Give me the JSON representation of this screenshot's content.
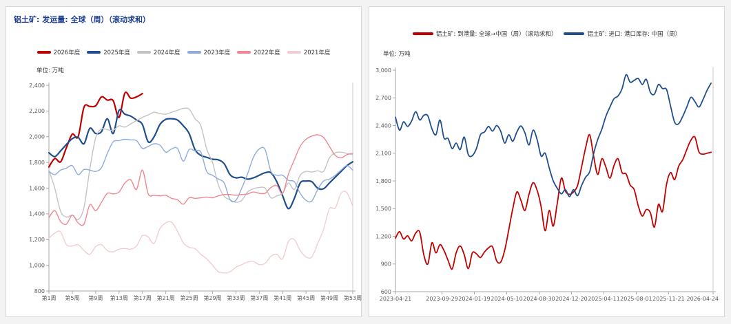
{
  "page": {
    "description_left_panel": "bauxite weekly global shipments",
    "description_right_panel": "bauxite arrivals and port inventory China"
  },
  "chart_data": [
    {
      "type": "line",
      "title": "铝土矿: 发运量: 全球（周）（滚动求和）",
      "unit": "单位: 万吨",
      "ylim": [
        800,
        2400
      ],
      "y_step": 200,
      "axis_weeks": [
        1,
        53
      ],
      "x_tick_weeks": [
        1,
        5,
        9,
        13,
        17,
        21,
        25,
        29,
        33,
        37,
        41,
        45,
        49,
        53
      ],
      "x_tick_labels": [
        "第1周",
        "第5周",
        "第9周",
        "第13周",
        "第17周",
        "第21周",
        "第25周",
        "第29周",
        "第33周",
        "第37周",
        "第41周",
        "第45周",
        "第49周",
        "第53周"
      ],
      "legend_position": "top",
      "grid": false,
      "series": [
        {
          "name": "2026年度",
          "color": "#c00000",
          "width": 2.2,
          "week_start": 1,
          "week_step": 1,
          "values": [
            1765,
            1830,
            1805,
            1915,
            2020,
            2000,
            2230,
            2235,
            2240,
            2310,
            2285,
            2280,
            2150,
            2340,
            2300,
            2310,
            2335
          ]
        },
        {
          "name": "2025年度",
          "color": "#1f4e8c",
          "width": 2.2,
          "week_start": 1,
          "week_step": 1,
          "values": [
            1875,
            1845,
            1890,
            1940,
            1985,
            1995,
            1945,
            2065,
            2025,
            2040,
            2140,
            2025,
            2205,
            2175,
            2160,
            2130,
            2095,
            1960,
            2000,
            2095,
            2135,
            2140,
            2130,
            2085,
            2025,
            1900,
            1855,
            1840,
            1825,
            1820,
            1790,
            1705,
            1680,
            1685,
            1670,
            1680,
            1700,
            1720,
            1720,
            1650,
            1540,
            1440,
            1520,
            1640,
            1655,
            1650,
            1600,
            1595,
            1640,
            1685,
            1730,
            1775,
            1805
          ]
        },
        {
          "name": "2024年度",
          "color": "#c3c3c3",
          "width": 1.4,
          "week_start": 1,
          "week_step": 1,
          "values": [
            1740,
            1600,
            1420,
            1375,
            1390,
            1355,
            1450,
            1750,
            1990,
            2060,
            2055,
            2050,
            2085,
            2075,
            2100,
            2125,
            2150,
            2170,
            2190,
            2180,
            2175,
            2190,
            2205,
            2220,
            2215,
            2140,
            2085,
            1905,
            1800,
            1625,
            1535,
            1510,
            1490,
            1505,
            1570,
            1595,
            1605,
            1600,
            1525,
            1540,
            1560,
            1640,
            1590,
            1700,
            1730,
            1725,
            1735,
            1730,
            1835,
            1875,
            1880,
            1870,
            1860
          ]
        },
        {
          "name": "2023年度",
          "color": "#8faadc",
          "width": 1.4,
          "week_start": 1,
          "week_step": 1,
          "values": [
            1730,
            1705,
            1740,
            1755,
            1775,
            1705,
            1745,
            1740,
            1730,
            1760,
            1870,
            1960,
            1970,
            1980,
            1975,
            1970,
            1910,
            1925,
            1945,
            1935,
            1880,
            1905,
            1910,
            1810,
            1900,
            1890,
            1880,
            1730,
            1700,
            1670,
            1640,
            1510,
            1505,
            1600,
            1710,
            1840,
            1905,
            1900,
            1730,
            1700,
            1700,
            1660,
            1650,
            1560,
            1505,
            1500,
            1590,
            1655,
            1670,
            1700,
            1740,
            1775,
            1740
          ]
        },
        {
          "name": "2022年度",
          "color": "#f0868f",
          "width": 1.4,
          "week_start": 1,
          "week_step": 1,
          "values": [
            1370,
            1425,
            1340,
            1320,
            1390,
            1330,
            1320,
            1470,
            1425,
            1490,
            1560,
            1555,
            1570,
            1640,
            1665,
            1590,
            1740,
            1555,
            1545,
            1540,
            1545,
            1520,
            1510,
            1475,
            1525,
            1520,
            1525,
            1530,
            1525,
            1540,
            1550,
            1550,
            1545,
            1550,
            1555,
            1570,
            1560,
            1560,
            1605,
            1620,
            1560,
            1710,
            1820,
            1925,
            1980,
            2005,
            2015,
            1995,
            1925,
            1855,
            1835,
            1860,
            1870
          ]
        },
        {
          "name": "2021年度",
          "color": "#f2cdd0",
          "width": 1.4,
          "week_start": 1,
          "week_step": 1,
          "values": [
            1210,
            1250,
            1260,
            1160,
            1150,
            1160,
            1115,
            1085,
            1145,
            1160,
            1115,
            1105,
            1125,
            1130,
            1125,
            1150,
            1230,
            1220,
            1170,
            1285,
            1330,
            1335,
            1265,
            1175,
            1140,
            1130,
            1085,
            1050,
            1000,
            950,
            940,
            950,
            985,
            1005,
            1025,
            1030,
            1005,
            1015,
            1070,
            1085,
            1050,
            1185,
            1200,
            1115,
            1065,
            1065,
            1170,
            1280,
            1440,
            1445,
            1560,
            1565,
            1460
          ]
        }
      ]
    },
    {
      "type": "line",
      "title": "",
      "unit": "单位: 万吨",
      "ylim": [
        600,
        3000
      ],
      "y_step": 300,
      "axis_weeks": [
        0,
        157
      ],
      "x_tick_weeks": [
        0,
        23,
        39,
        55,
        71,
        87,
        103,
        119,
        135,
        157
      ],
      "x_tick_labels": [
        "2023-04-21",
        "2023-09-29",
        "2024-01-19",
        "2024-05-10",
        "2024-08-30",
        "2024-12-20",
        "2025-04-11",
        "2025-08-01",
        "2025-11-21",
        "2026-04-24"
      ],
      "legend_position": "top",
      "grid": false,
      "series": [
        {
          "name": "铝土矿: 到港量: 全球→中国（周）（滚动求和）",
          "color": "#c00000",
          "width": 1.8,
          "week_start": 0,
          "week_step": 2,
          "values": [
            1180,
            1250,
            1170,
            1205,
            1150,
            1235,
            1245,
            1000,
            900,
            1130,
            1020,
            1110,
            1045,
            940,
            845,
            1020,
            1095,
            1000,
            850,
            1020,
            1010,
            970,
            1030,
            1075,
            1085,
            935,
            920,
            1050,
            1270,
            1500,
            1680,
            1590,
            1480,
            1655,
            1780,
            1700,
            1520,
            1260,
            1480,
            1310,
            1560,
            1830,
            1690,
            1655,
            1680,
            1750,
            1950,
            2160,
            2300,
            2060,
            1870,
            2040,
            1950,
            1830,
            1965,
            2040,
            1890,
            1875,
            1755,
            1705,
            1530,
            1420,
            1490,
            1455,
            1300,
            1545,
            1470,
            1765,
            1890,
            1815,
            1960,
            2030,
            2140,
            2240,
            2275,
            2115,
            2090,
            2100,
            2110
          ]
        },
        {
          "name": "铝土矿: 进口: 港口库存: 中国（周）",
          "color": "#1f4e8c",
          "width": 1.8,
          "week_start": 0,
          "week_step": 2,
          "values": [
            2490,
            2350,
            2440,
            2390,
            2450,
            2550,
            2460,
            2510,
            2505,
            2365,
            2300,
            2460,
            2265,
            2260,
            2150,
            2210,
            2140,
            2275,
            2085,
            2075,
            2150,
            2300,
            2330,
            2390,
            2340,
            2400,
            2340,
            2210,
            2300,
            2230,
            2330,
            2395,
            2320,
            2190,
            2350,
            2250,
            2070,
            2100,
            1940,
            1800,
            1720,
            1660,
            1705,
            1630,
            1705,
            1640,
            1750,
            1840,
            1900,
            2100,
            2250,
            2360,
            2500,
            2600,
            2690,
            2720,
            2800,
            2950,
            2870,
            2890,
            2910,
            2845,
            2900,
            2760,
            2740,
            2845,
            2800,
            2790,
            2610,
            2435,
            2420,
            2500,
            2600,
            2705,
            2660,
            2600,
            2680,
            2780,
            2860
          ]
        }
      ]
    }
  ]
}
